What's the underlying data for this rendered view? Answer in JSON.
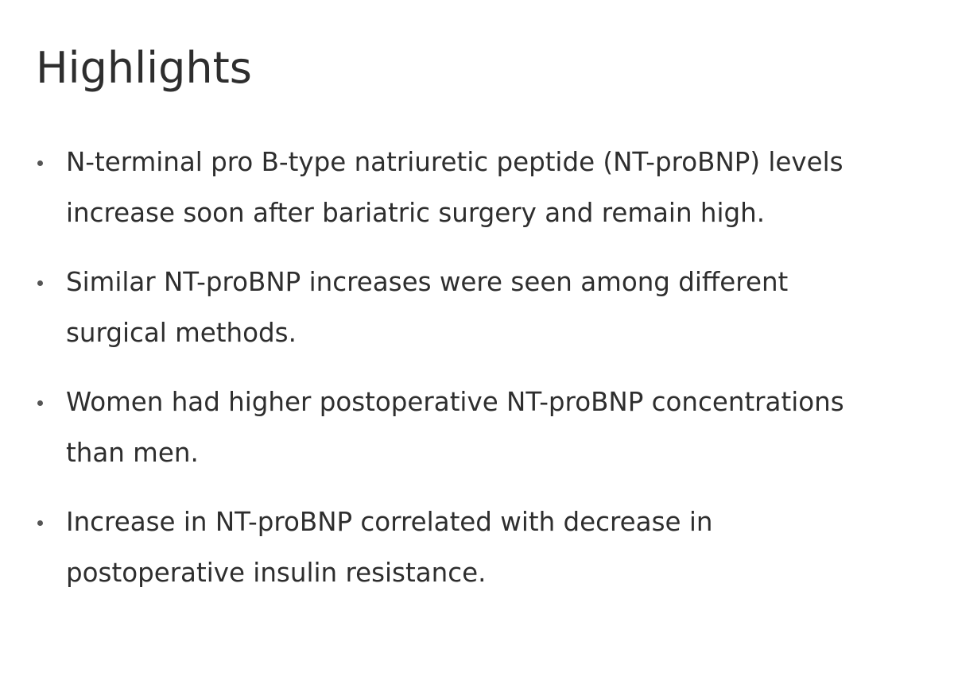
{
  "header": {
    "title": "Highlights"
  },
  "list": {
    "items": [
      "N-terminal pro B-type natriuretic peptide (NT-proBNP) levels increase soon after bariatric surgery and remain high.",
      "Similar NT-proBNP increases were seen among different surgical methods.",
      "Women had higher postoperative NT-proBNP concentrations than men.",
      "Increase in NT-proBNP correlated with decrease in postoperative insulin resistance."
    ]
  }
}
